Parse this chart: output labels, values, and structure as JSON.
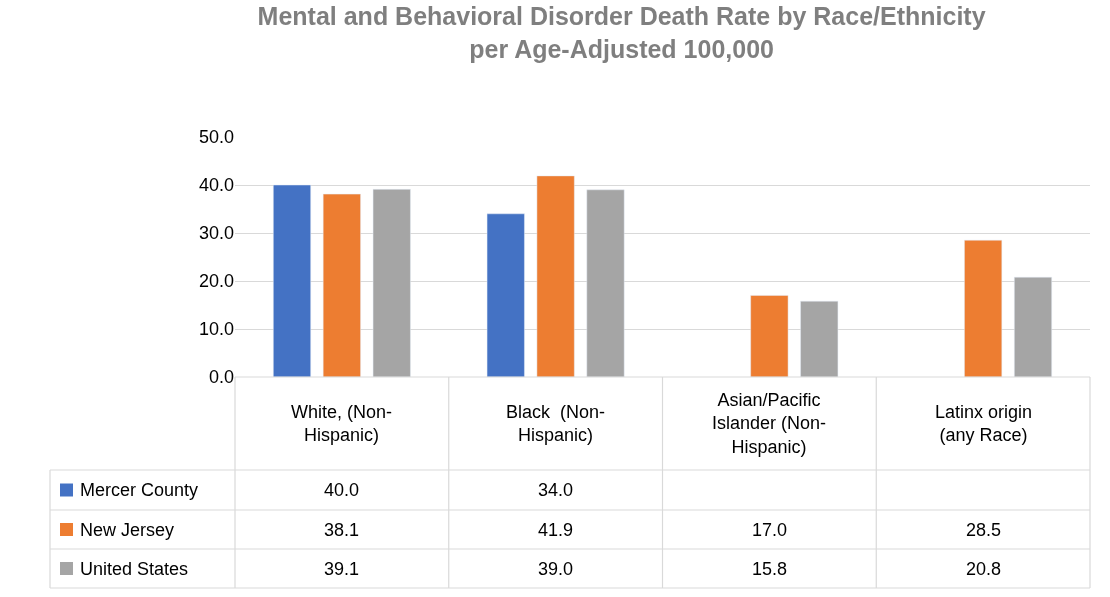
{
  "chart_data": {
    "type": "bar",
    "title": "Mental and Behavioral Disorder Death Rate by Race/Ethnicity per Age-Adjusted 100,000",
    "categories": [
      "White, (Non-Hispanic)",
      "Black  (Non-Hispanic)",
      "Asian/Pacific Islander (Non-Hispanic)",
      "Latinx origin (any Race)"
    ],
    "series": [
      {
        "name": "Mercer County",
        "color": "#4472c4",
        "values": [
          40.0,
          34.0,
          null,
          null
        ],
        "value_labels": [
          "40.0",
          "34.0",
          null,
          null
        ]
      },
      {
        "name": "New Jersey",
        "color": "#ed7d31",
        "values": [
          38.1,
          41.9,
          17.0,
          28.5
        ],
        "value_labels": [
          "38.1",
          "41.9",
          "17.0",
          "28.5"
        ]
      },
      {
        "name": "United States",
        "color": "#a5a5a5",
        "values": [
          39.1,
          39.0,
          15.8,
          20.8
        ],
        "value_labels": [
          "39.1",
          "39.0",
          "15.8",
          "20.8"
        ]
      }
    ],
    "ylim": [
      0,
      50
    ],
    "yticks": [
      {
        "value": 0,
        "label": "0.0"
      },
      {
        "value": 10,
        "label": "10.0"
      },
      {
        "value": 20,
        "label": "20.0"
      },
      {
        "value": 30,
        "label": "30.0"
      },
      {
        "value": 40,
        "label": "40.0"
      },
      {
        "value": 50,
        "label": "50.0"
      }
    ],
    "grid": "y",
    "legend": "bottom left"
  }
}
